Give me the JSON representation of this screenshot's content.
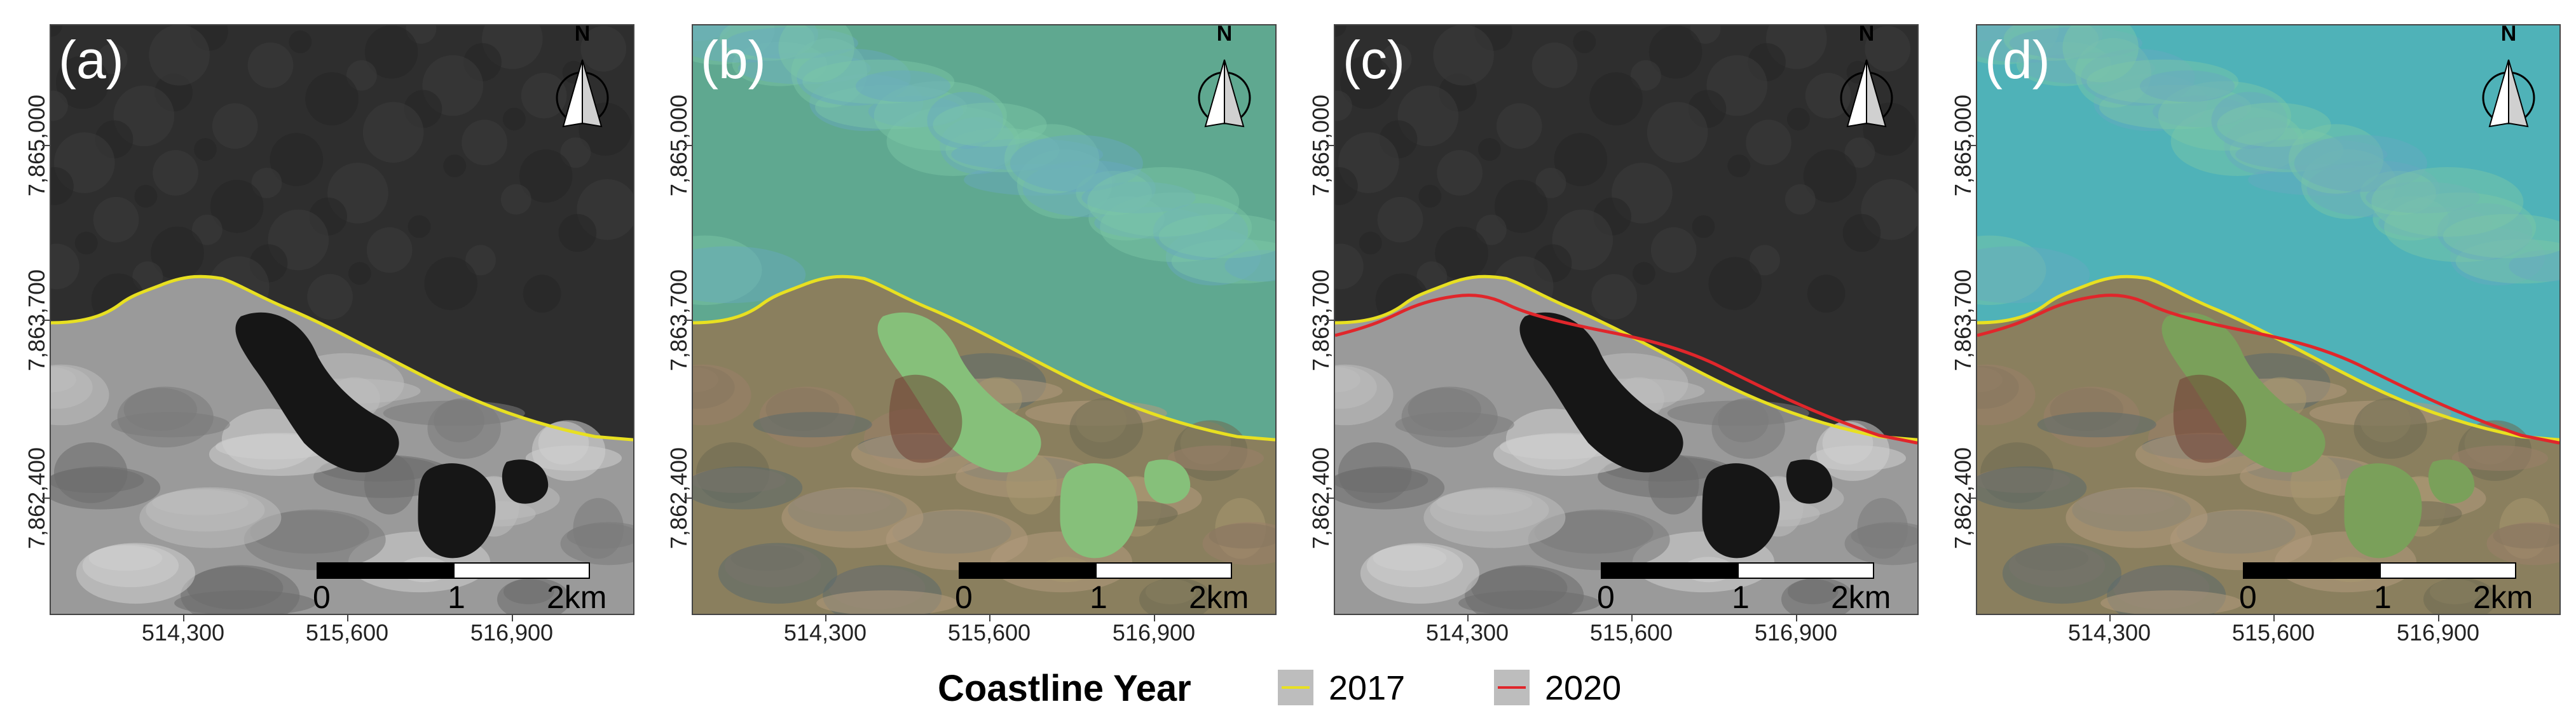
{
  "panels": [
    {
      "label": "(a)",
      "style": "sar",
      "lines": [
        "2017"
      ]
    },
    {
      "label": "(b)",
      "style": "optical",
      "lines": [
        "2017"
      ]
    },
    {
      "label": "(c)",
      "style": "sar",
      "lines": [
        "2017",
        "2020"
      ]
    },
    {
      "label": "(d)",
      "style": "optical2",
      "lines": [
        "2017",
        "2020"
      ]
    }
  ],
  "north_label": "N",
  "scale": {
    "start": "0",
    "mid": "1",
    "end": "2km"
  },
  "y_ticks": [
    "7,865,000",
    "7,863,700",
    "7,862,400"
  ],
  "x_ticks": [
    "514,300",
    "515,600",
    "516,900"
  ],
  "legend": {
    "title": "Coastline Year",
    "items": [
      {
        "label": "2017",
        "color": "#e8e021"
      },
      {
        "label": "2020",
        "color": "#e0262b"
      }
    ]
  },
  "colors": {
    "coast_2017": "#e8e021",
    "coast_2020": "#e0262b",
    "sea_sar": "#2e2e2e",
    "sea_optical": "#5fa890"
  }
}
